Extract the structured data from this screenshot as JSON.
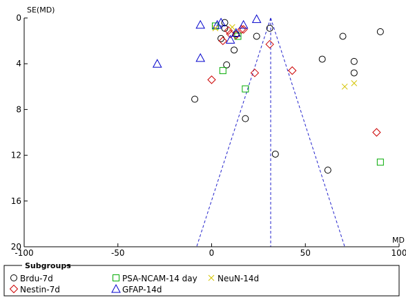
{
  "chart_data": {
    "type": "scatter",
    "title": "",
    "xlabel": "MD",
    "ylabel": "SE(MD)",
    "xlim": [
      -100,
      100
    ],
    "ylim": [
      0,
      20
    ],
    "y_axis_inverted": true,
    "x_ticks": [
      -100,
      -50,
      0,
      50,
      100
    ],
    "y_ticks": [
      0,
      4,
      8,
      12,
      16,
      20
    ],
    "grid": false,
    "legend_title": "Subgroups",
    "legend_position": "bottom",
    "funnel": {
      "pooled_md": 31.5,
      "lines": [
        {
          "from": [
            31.5,
            0
          ],
          "to": [
            -8,
            20
          ]
        },
        {
          "from": [
            31.5,
            0
          ],
          "to": [
            71,
            20
          ]
        },
        {
          "from": [
            31.5,
            0
          ],
          "to": [
            31.5,
            20
          ]
        }
      ]
    },
    "series": [
      {
        "name": "Brdu-7d",
        "marker": "circle",
        "color": "#000000",
        "points": [
          [
            -9,
            7.1
          ],
          [
            5,
            1.8
          ],
          [
            7,
            0.4
          ],
          [
            7,
            0.9
          ],
          [
            8,
            4.1
          ],
          [
            12,
            2.8
          ],
          [
            13,
            1.4
          ],
          [
            18,
            8.8
          ],
          [
            24,
            1.6
          ],
          [
            31,
            0.9
          ],
          [
            34,
            11.9
          ],
          [
            59,
            3.6
          ],
          [
            62,
            13.3
          ],
          [
            70,
            1.6
          ],
          [
            76,
            3.8
          ],
          [
            76,
            4.8
          ],
          [
            90,
            1.2
          ]
        ]
      },
      {
        "name": "Nestin-7d",
        "marker": "diamond",
        "color": "#cc0000",
        "points": [
          [
            0,
            5.4
          ],
          [
            6,
            2
          ],
          [
            9,
            1.1
          ],
          [
            10,
            1.4
          ],
          [
            13,
            1.5
          ],
          [
            16,
            1
          ],
          [
            17,
            1
          ],
          [
            23,
            4.8
          ],
          [
            31,
            2.3
          ],
          [
            43,
            4.6
          ],
          [
            88,
            10
          ]
        ]
      },
      {
        "name": "PSA-NCAM-14 day",
        "marker": "square",
        "color": "#00aa00",
        "points": [
          [
            2,
            0.7
          ],
          [
            6,
            4.6
          ],
          [
            14,
            1.6
          ],
          [
            18,
            6.2
          ],
          [
            90,
            12.6
          ]
        ]
      },
      {
        "name": "GFAP-14d",
        "marker": "triangle",
        "color": "#0000cc",
        "points": [
          [
            -29,
            4
          ],
          [
            -6,
            0.6
          ],
          [
            -6,
            3.5
          ],
          [
            3,
            0.6
          ],
          [
            5,
            0.4
          ],
          [
            10,
            1.9
          ],
          [
            13,
            1.3
          ],
          [
            17,
            0.6
          ],
          [
            24,
            0.1
          ]
        ]
      },
      {
        "name": "NeuN-14d",
        "marker": "cross",
        "color": "#d4c400",
        "points": [
          [
            2,
            0.9
          ],
          [
            11,
            0.8
          ],
          [
            71,
            6
          ],
          [
            76,
            5.7
          ]
        ]
      }
    ]
  }
}
